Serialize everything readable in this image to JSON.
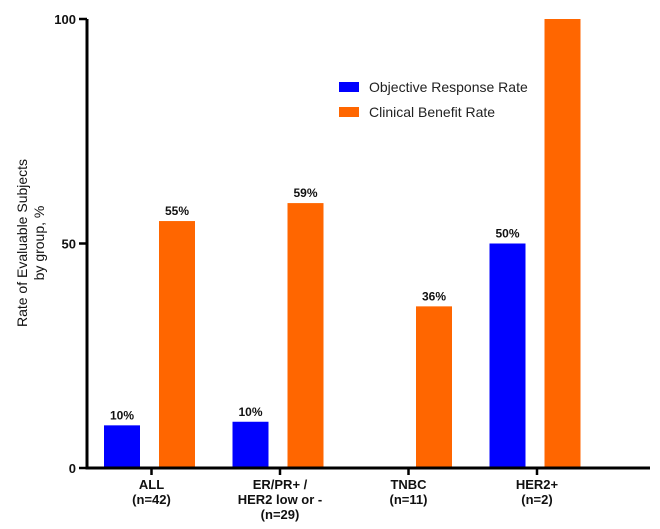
{
  "chart_data": {
    "type": "bar",
    "title": "",
    "xlabel": "",
    "ylabel_lines": [
      "Rate of Evaluable Subjects",
      "by group, %"
    ],
    "ylim": [
      0,
      100
    ],
    "yticks": [
      0,
      50,
      100
    ],
    "grid": false,
    "legend_position": "top-center",
    "categories": [
      {
        "lines": [
          "ALL",
          "(n=42)"
        ]
      },
      {
        "lines": [
          "ER/PR+ /",
          "HER2 low or -",
          "(n=29)"
        ]
      },
      {
        "lines": [
          "TNBC",
          "(n=11)"
        ]
      },
      {
        "lines": [
          "HER2+",
          "(n=2)"
        ]
      }
    ],
    "series": [
      {
        "name": "Objective Response Rate",
        "color": "#0000ff",
        "values": [
          9.5,
          10.3,
          null,
          50
        ],
        "labels": [
          "10%",
          "10%",
          "",
          "50%"
        ]
      },
      {
        "name": "Clinical  Benefit Rate",
        "color": "#ff6600",
        "values": [
          55,
          59,
          36,
          100
        ],
        "labels": [
          "55%",
          "59%",
          "36%",
          ""
        ]
      }
    ]
  }
}
